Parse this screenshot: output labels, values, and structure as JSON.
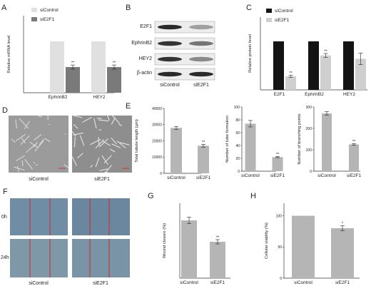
{
  "panel_letters": [
    "A",
    "B",
    "C",
    "D",
    "E",
    "F",
    "G",
    "H"
  ],
  "colors": {
    "control_light": "#e0e0e0",
    "treated_grey": "#7a7a7a",
    "control_black": "#141414",
    "treated_light": "#cfcfcf",
    "bar_grey": "#b5b5b5",
    "cut_red": "#cc2a2a"
  },
  "western": {
    "bands": [
      "E2F1",
      "EphrinB2",
      "HEY2",
      "β-actin"
    ],
    "lanes": [
      "siControl",
      "siE2F1"
    ],
    "intensity": [
      [
        0.9,
        0.35
      ],
      [
        0.85,
        0.55
      ],
      [
        0.85,
        0.45
      ],
      [
        0.9,
        0.9
      ]
    ]
  },
  "micro_tube": {
    "captions": [
      "siControl",
      "siE2F1"
    ]
  },
  "scratch": {
    "rows": [
      "0h",
      "24h"
    ],
    "captions": [
      "siControl",
      "siE2F1"
    ]
  },
  "chart_data": [
    {
      "panel": "A",
      "type": "bar",
      "categories": [
        "EphrinB2",
        "HEY2"
      ],
      "series": [
        {
          "name": "siControl",
          "values": [
            1.0,
            1.0
          ],
          "color": "#e0e0e0"
        },
        {
          "name": "siE2F1",
          "values": [
            0.5,
            0.5
          ],
          "err": [
            0.04,
            0.04
          ],
          "color": "#7a7a7a",
          "stars": [
            "**",
            "**"
          ]
        }
      ],
      "ylabel": "Relative mRNA level",
      "ylim": [
        0,
        1.5
      ],
      "yticks": [],
      "legend": "top-left"
    },
    {
      "panel": "C",
      "type": "bar",
      "categories": [
        "E2F1",
        "EphrinB2",
        "HEY2"
      ],
      "series": [
        {
          "name": "siControl",
          "values": [
            1.0,
            1.0,
            1.0
          ],
          "color": "#141414"
        },
        {
          "name": "siE2F1",
          "values": [
            0.28,
            0.71,
            0.64
          ],
          "err": [
            0.02,
            0.04,
            0.12
          ],
          "color": "#cfcfcf",
          "stars": [
            "**",
            "**",
            ""
          ]
        }
      ],
      "ylabel": "Relative protein level",
      "ylim": [
        0,
        1.5
      ],
      "yticks": [],
      "legend": "top-left"
    },
    {
      "panel": "E",
      "type": "bar",
      "categories": [
        "siControl",
        "siE2F1"
      ],
      "series": [
        {
          "name": "",
          "values": [
            28000,
            17000
          ],
          "err": [
            900,
            900
          ],
          "color": "#b5b5b5",
          "stars": [
            "",
            "**"
          ]
        }
      ],
      "ylabel": "Total tubule length (μm)",
      "ylim": [
        0,
        40000
      ],
      "yticks": [
        0,
        10000,
        20000,
        30000,
        40000
      ],
      "tickLabels": [
        "0",
        "10000",
        "20000",
        "30000",
        "40000"
      ]
    },
    {
      "panel": "E",
      "type": "bar",
      "categories": [
        "siControl",
        "siE2F1"
      ],
      "series": [
        {
          "name": "",
          "values": [
            74,
            22
          ],
          "err": [
            5,
            1
          ],
          "color": "#b5b5b5",
          "stars": [
            "",
            "**"
          ]
        }
      ],
      "ylabel": "Number of tube formation",
      "ylim": [
        0,
        100
      ],
      "yticks": [
        0,
        20,
        40,
        60,
        80,
        100
      ],
      "tickLabels": [
        "0",
        "20",
        "40",
        "60",
        "80",
        "100"
      ]
    },
    {
      "panel": "E",
      "type": "bar",
      "categories": [
        "siControl",
        "siE2F1"
      ],
      "series": [
        {
          "name": "",
          "values": [
            270,
            125
          ],
          "err": [
            8,
            4
          ],
          "color": "#b5b5b5",
          "stars": [
            "",
            "**"
          ]
        }
      ],
      "ylabel": "Number of branching points",
      "ylim": [
        0,
        300
      ],
      "yticks": [
        0,
        100,
        200,
        300
      ],
      "tickLabels": [
        "0",
        "100",
        "200",
        "300"
      ]
    },
    {
      "panel": "G",
      "type": "bar",
      "categories": [
        "siControl",
        "siE2F1"
      ],
      "series": [
        {
          "name": "",
          "values": [
            54,
            34
          ],
          "err": [
            3,
            2
          ],
          "color": "#b5b5b5",
          "stars": [
            "",
            "**"
          ]
        }
      ],
      "ylabel": "Wound closure (%)",
      "ylim": [
        0,
        70
      ],
      "yticks": [],
      "tickLabels": []
    },
    {
      "panel": "H",
      "type": "bar",
      "categories": [
        "siControl",
        "siE2F1"
      ],
      "series": [
        {
          "name": "",
          "values": [
            100,
            80
          ],
          "err": [
            0,
            4
          ],
          "color": "#b5b5b5",
          "stars": [
            "",
            "*"
          ]
        }
      ],
      "ylabel": "Cellular viability (%)",
      "ylim": [
        0,
        120
      ],
      "yticks": [
        0,
        50,
        100
      ],
      "tickLabels": [
        "0",
        "50",
        "100"
      ]
    }
  ]
}
